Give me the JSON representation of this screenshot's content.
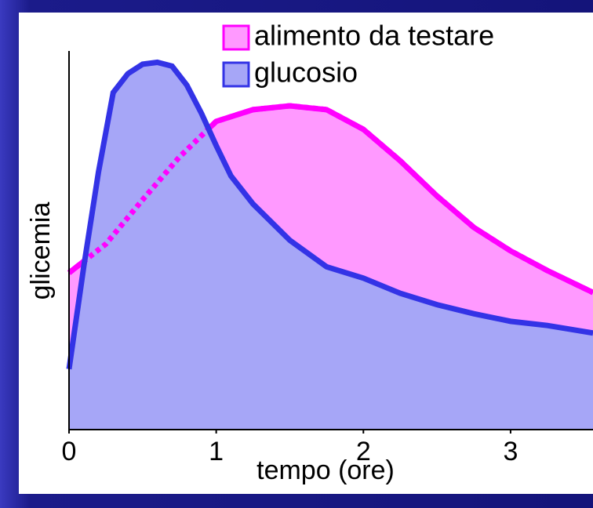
{
  "chart_data": {
    "type": "area",
    "x_label": "tempo (ore)",
    "y_label": "glicemia",
    "x": [
      0,
      0.1,
      0.2,
      0.25,
      0.3,
      0.4,
      0.5,
      0.6,
      0.7,
      0.75,
      0.8,
      0.9,
      1.0,
      1.1,
      1.25,
      1.5,
      1.75,
      2.0,
      2.25,
      2.5,
      2.75,
      3.0,
      3.25,
      3.56
    ],
    "series": [
      {
        "name": "alimento da testare",
        "color": "#ff00ff",
        "fill": "#ff99ff",
        "values": [
          41.4,
          null,
          null,
          49,
          null,
          null,
          60.7,
          null,
          null,
          72,
          null,
          null,
          81.4,
          null,
          84.5,
          85.5,
          84.5,
          79.3,
          71,
          61.7,
          53.4,
          47.2,
          42,
          36.2
        ]
      },
      {
        "name": "glucosio",
        "color": "#3333e6",
        "fill": "#a6a6f7",
        "values": [
          16,
          43,
          68,
          null,
          89,
          94,
          96.5,
          97,
          96,
          null,
          91,
          83.5,
          75,
          67,
          59.6,
          50,
          43,
          40,
          36,
          33,
          30.6,
          28.6,
          27.5,
          25.5
        ]
      }
    ],
    "xlim": [
      0,
      3.56
    ],
    "xticks": [
      0,
      1,
      2,
      3
    ],
    "ylim": [
      0,
      100
    ]
  }
}
